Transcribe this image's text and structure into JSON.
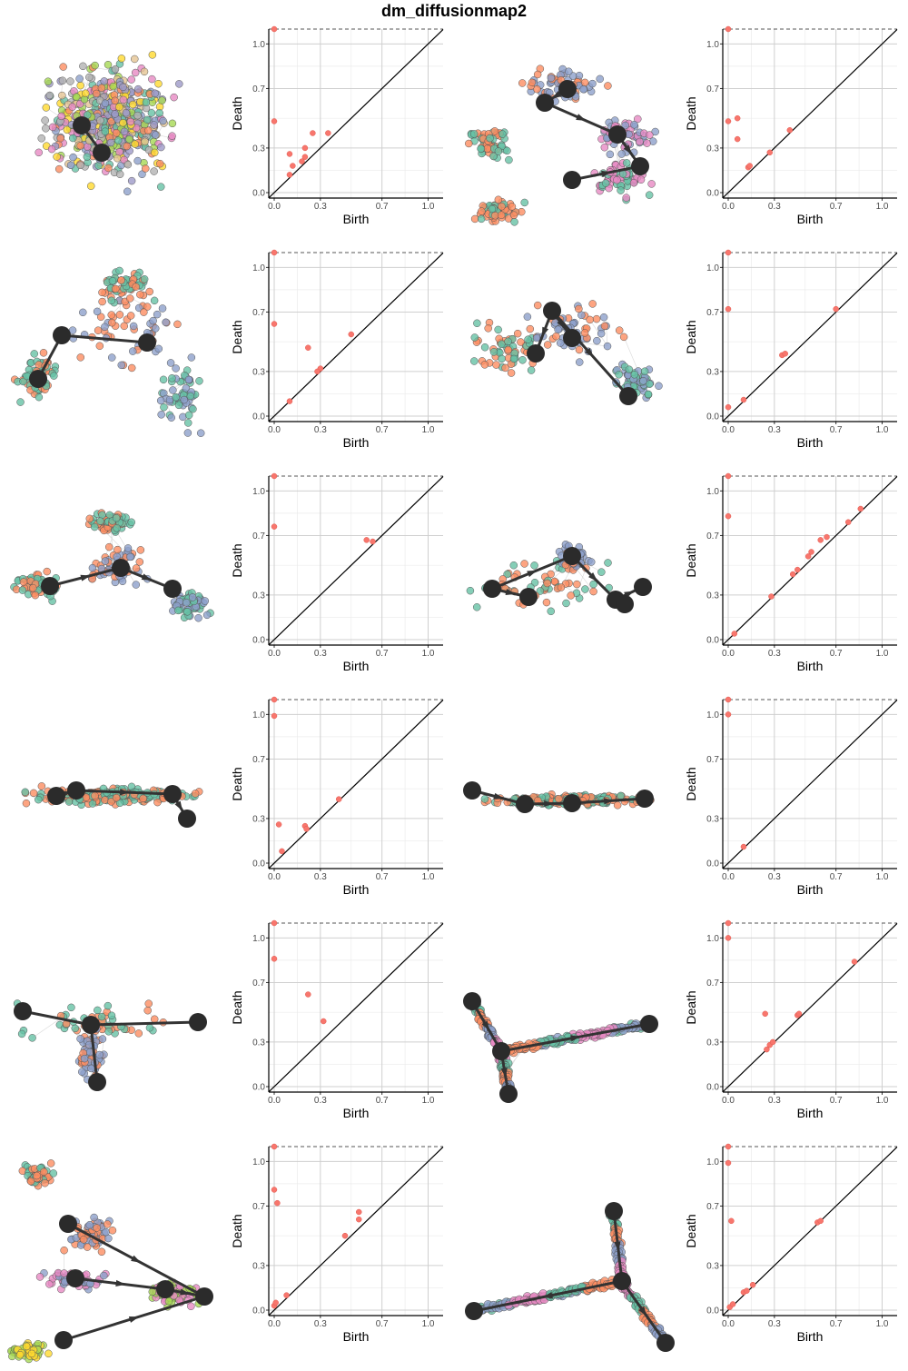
{
  "figure": {
    "title": "dm_diffusionmap2",
    "axis_tick_labels": [
      "0.0",
      "0.3",
      "0.7",
      "1.0"
    ],
    "axis_ticks": [
      0.0,
      0.3,
      0.7,
      1.0
    ],
    "xlabel": "Birth",
    "ylabel": "Death",
    "point_color": "#F8766D",
    "palette": [
      "#66C2A5",
      "#FC8D62",
      "#8DA0CB",
      "#E78AC3",
      "#A6D854",
      "#FFD92F",
      "#E5C494",
      "#B3B3B3",
      "#9E9AC8",
      "#F46D43",
      "#D9EF8B",
      "#4575B4"
    ]
  },
  "chart_data": [
    {
      "type": "scatter",
      "panel": "row1-diagram-a",
      "xlabel": "Birth",
      "ylabel": "Death",
      "xlim": [
        0,
        1.05
      ],
      "ylim": [
        0,
        1.1
      ],
      "points": [
        [
          0.0,
          1.1
        ],
        [
          0.0,
          0.48
        ],
        [
          0.1,
          0.26
        ],
        [
          0.12,
          0.18
        ],
        [
          0.1,
          0.12
        ],
        [
          0.18,
          0.21
        ],
        [
          0.2,
          0.24
        ],
        [
          0.25,
          0.4
        ],
        [
          0.2,
          0.3
        ],
        [
          0.35,
          0.4
        ]
      ]
    },
    {
      "type": "scatter",
      "panel": "row1-diagram-b",
      "xlabel": "Birth",
      "ylabel": "Death",
      "xlim": [
        0,
        1.05
      ],
      "ylim": [
        0,
        1.1
      ],
      "points": [
        [
          0.0,
          1.1
        ],
        [
          0.0,
          0.48
        ],
        [
          0.06,
          0.5
        ],
        [
          0.06,
          0.36
        ],
        [
          0.13,
          0.17
        ],
        [
          0.14,
          0.18
        ],
        [
          0.27,
          0.27
        ],
        [
          0.4,
          0.42
        ]
      ]
    },
    {
      "type": "scatter",
      "panel": "row2-diagram-a",
      "xlabel": "Birth",
      "ylabel": "Death",
      "xlim": [
        0,
        1.05
      ],
      "ylim": [
        0,
        1.1
      ],
      "points": [
        [
          0.0,
          1.1
        ],
        [
          0.0,
          0.62
        ],
        [
          0.22,
          0.46
        ],
        [
          0.5,
          0.55
        ],
        [
          0.3,
          0.32
        ],
        [
          0.28,
          0.3
        ],
        [
          0.1,
          0.1
        ]
      ]
    },
    {
      "type": "scatter",
      "panel": "row2-diagram-b",
      "xlabel": "Birth",
      "ylabel": "Death",
      "xlim": [
        0,
        1.05
      ],
      "ylim": [
        0,
        1.1
      ],
      "points": [
        [
          0.0,
          1.1
        ],
        [
          0.0,
          0.72
        ],
        [
          0.0,
          0.06
        ],
        [
          0.1,
          0.11
        ],
        [
          0.35,
          0.41
        ],
        [
          0.37,
          0.42
        ],
        [
          0.7,
          0.72
        ]
      ]
    },
    {
      "type": "scatter",
      "panel": "row3-diagram-a",
      "xlabel": "Birth",
      "ylabel": "Death",
      "xlim": [
        0,
        1.05
      ],
      "ylim": [
        0,
        1.1
      ],
      "points": [
        [
          0.0,
          1.1
        ],
        [
          0.0,
          0.76
        ],
        [
          0.6,
          0.67
        ],
        [
          0.64,
          0.66
        ]
      ]
    },
    {
      "type": "scatter",
      "panel": "row3-diagram-b",
      "xlabel": "Birth",
      "ylabel": "Death",
      "xlim": [
        0,
        1.05
      ],
      "ylim": [
        0,
        1.1
      ],
      "points": [
        [
          0.0,
          1.1
        ],
        [
          0.0,
          0.83
        ],
        [
          0.04,
          0.04
        ],
        [
          0.28,
          0.29
        ],
        [
          0.42,
          0.44
        ],
        [
          0.45,
          0.47
        ],
        [
          0.52,
          0.56
        ],
        [
          0.54,
          0.59
        ],
        [
          0.6,
          0.67
        ],
        [
          0.64,
          0.69
        ],
        [
          0.78,
          0.79
        ],
        [
          0.86,
          0.88
        ]
      ]
    },
    {
      "type": "scatter",
      "panel": "row4-diagram-a",
      "xlabel": "Birth",
      "ylabel": "Death",
      "xlim": [
        0,
        1.05
      ],
      "ylim": [
        0,
        1.1
      ],
      "points": [
        [
          0.0,
          1.1
        ],
        [
          0.0,
          0.99
        ],
        [
          0.03,
          0.26
        ],
        [
          0.2,
          0.25
        ],
        [
          0.21,
          0.23
        ],
        [
          0.42,
          0.43
        ],
        [
          0.05,
          0.08
        ]
      ]
    },
    {
      "type": "scatter",
      "panel": "row4-diagram-b",
      "xlabel": "Birth",
      "ylabel": "Death",
      "xlim": [
        0,
        1.05
      ],
      "ylim": [
        0,
        1.1
      ],
      "points": [
        [
          0.0,
          1.1
        ],
        [
          0.0,
          1.0
        ],
        [
          0.1,
          0.11
        ]
      ]
    },
    {
      "type": "scatter",
      "panel": "row5-diagram-a",
      "xlabel": "Birth",
      "ylabel": "Death",
      "xlim": [
        0,
        1.05
      ],
      "ylim": [
        0,
        1.1
      ],
      "points": [
        [
          0.0,
          1.1
        ],
        [
          0.0,
          0.86
        ],
        [
          0.22,
          0.62
        ],
        [
          0.32,
          0.44
        ]
      ]
    },
    {
      "type": "scatter",
      "panel": "row5-diagram-b",
      "xlabel": "Birth",
      "ylabel": "Death",
      "xlim": [
        0,
        1.05
      ],
      "ylim": [
        0,
        1.1
      ],
      "points": [
        [
          0.0,
          1.1
        ],
        [
          0.0,
          1.0
        ],
        [
          0.24,
          0.49
        ],
        [
          0.25,
          0.25
        ],
        [
          0.27,
          0.28
        ],
        [
          0.29,
          0.3
        ],
        [
          0.45,
          0.48
        ],
        [
          0.46,
          0.49
        ],
        [
          0.82,
          0.84
        ]
      ]
    },
    {
      "type": "scatter",
      "panel": "row6-diagram-a",
      "xlabel": "Birth",
      "ylabel": "Death",
      "xlim": [
        0,
        1.05
      ],
      "ylim": [
        0,
        1.1
      ],
      "points": [
        [
          0.0,
          1.1
        ],
        [
          0.0,
          0.81
        ],
        [
          0.02,
          0.72
        ],
        [
          0.0,
          0.03
        ],
        [
          0.01,
          0.05
        ],
        [
          0.08,
          0.1
        ],
        [
          0.46,
          0.5
        ],
        [
          0.55,
          0.66
        ],
        [
          0.55,
          0.61
        ]
      ]
    },
    {
      "type": "scatter",
      "panel": "row6-diagram-b",
      "xlabel": "Birth",
      "ylabel": "Death",
      "xlim": [
        0,
        1.05
      ],
      "ylim": [
        0,
        1.1
      ],
      "points": [
        [
          0.0,
          1.1
        ],
        [
          0.0,
          0.99
        ],
        [
          0.02,
          0.6
        ],
        [
          0.01,
          0.02
        ],
        [
          0.03,
          0.04
        ],
        [
          0.1,
          0.12
        ],
        [
          0.12,
          0.13
        ],
        [
          0.16,
          0.17
        ],
        [
          0.58,
          0.59
        ],
        [
          0.6,
          0.6
        ]
      ]
    }
  ]
}
